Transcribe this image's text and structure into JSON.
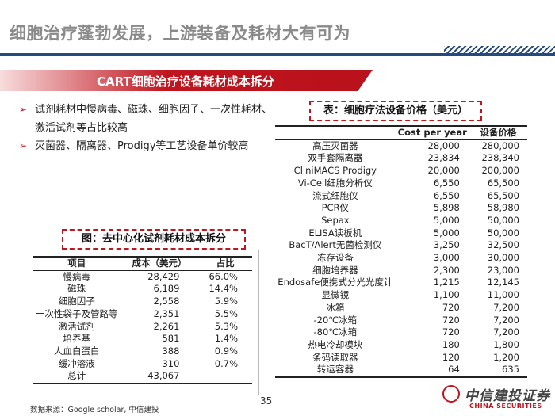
{
  "page_title": "细胞治疗蓬勃发展，上游装备及耗材大有可为",
  "section_banner": "CART细胞治疗设备耗材成本拆分",
  "bullets": [
    "试剂耗材中慢病毒、磁珠、细胞因子、一次性耗材、激活试剂等占比较高",
    "灭菌器、隔离器、Prodigy等工艺设备单价较高"
  ],
  "left_table": {
    "caption": "图：去中心化试剂耗材成本拆分",
    "headers": [
      "项目",
      "成本（美元）",
      "占比"
    ],
    "rows": [
      [
        "慢病毒",
        "28,429",
        "66.0%"
      ],
      [
        "磁珠",
        "6,189",
        "14.4%"
      ],
      [
        "细胞因子",
        "2,558",
        "5.9%"
      ],
      [
        "一次性袋子及管路等",
        "2,351",
        "5.5%"
      ],
      [
        "激活试剂",
        "2,261",
        "5.3%"
      ],
      [
        "培养基",
        "581",
        "1.4%"
      ],
      [
        "人血白蛋白",
        "388",
        "0.9%"
      ],
      [
        "缓冲溶液",
        "310",
        "0.7%"
      ],
      [
        "总计",
        "43,067",
        ""
      ]
    ]
  },
  "right_table": {
    "caption": "表：细胞疗法设备价格（美元）",
    "headers": [
      "",
      "Cost per year",
      "设备价格"
    ],
    "rows": [
      [
        "高压灭菌器",
        "28,000",
        "280,000"
      ],
      [
        "双手套隔离器",
        "23,834",
        "238,340"
      ],
      [
        "CliniMACS Prodigy",
        "20,000",
        "200,000"
      ],
      [
        "Vi-Cell细胞分析仪",
        "6,550",
        "65,500"
      ],
      [
        "流式细胞仪",
        "6,550",
        "65,500"
      ],
      [
        "PCR仪",
        "5,898",
        "58,980"
      ],
      [
        "Sepax",
        "5,000",
        "50,000"
      ],
      [
        "ELISA读板机",
        "5,000",
        "50,000"
      ],
      [
        "BacT/Alert无菌检测仪",
        "3,250",
        "32,500"
      ],
      [
        "冻存设备",
        "3,000",
        "30,000"
      ],
      [
        "细胞培养器",
        "2,300",
        "23,000"
      ],
      [
        "Endosafe便携式分光光度计",
        "1,215",
        "12,145"
      ],
      [
        "显微镜",
        "1,100",
        "11,000"
      ],
      [
        "冰箱",
        "720",
        "7,200"
      ],
      [
        "-20℃冰箱",
        "720",
        "7,200"
      ],
      [
        "-80℃冰箱",
        "720",
        "7,200"
      ],
      [
        "热电冷却模块",
        "180",
        "1,800"
      ],
      [
        "条码读取器",
        "120",
        "1,200"
      ],
      [
        "转运容器",
        "64",
        "635"
      ]
    ]
  },
  "source": "数据来源：Google scholar, 中信建投",
  "page_number": "35",
  "logo": {
    "cn": "中信建投证券",
    "en": "CHINA SECURITIES"
  },
  "colors": {
    "accent_red": "#c0141e",
    "navy": "#244a7e",
    "title_gray": "#8a8a8a"
  }
}
